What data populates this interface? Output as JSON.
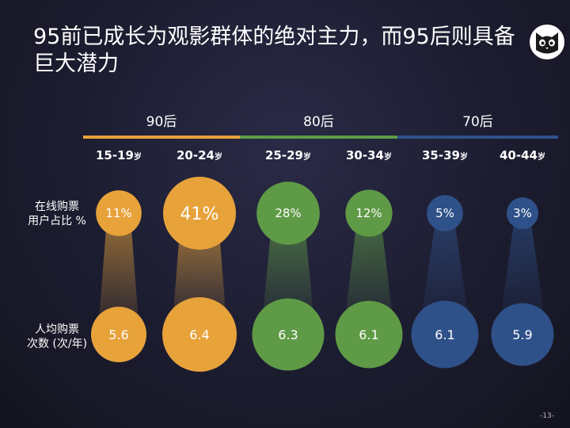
{
  "title": "95前已成长为观影群体的绝对主力，而95后则具备巨大潜力",
  "page_number": "-13-",
  "logo_icon": "cat-icon",
  "colors": {
    "90后": "#e7a23a",
    "80后": "#5f9a46",
    "70后": "#2f5189"
  },
  "row_labels": {
    "share": [
      "在线购票",
      "用户占比 %"
    ],
    "tickets": [
      "人均购票",
      "次数 (次/年)"
    ]
  },
  "chart_data": {
    "type": "bubble",
    "groups": [
      {
        "name": "90后",
        "color": "#e7a23a",
        "categories": [
          0,
          1
        ]
      },
      {
        "name": "80后",
        "color": "#5f9a46",
        "categories": [
          2,
          3
        ]
      },
      {
        "name": "70后",
        "color": "#2f5189",
        "categories": [
          4,
          5
        ]
      }
    ],
    "categories": [
      {
        "label": "15-19",
        "unit": "岁"
      },
      {
        "label": "20-24",
        "unit": "岁"
      },
      {
        "label": "25-29",
        "unit": "岁"
      },
      {
        "label": "30-34",
        "unit": "岁"
      },
      {
        "label": "35-39",
        "unit": "岁"
      },
      {
        "label": "40-44",
        "unit": "岁"
      }
    ],
    "series": [
      {
        "name": "在线购票用户占比 %",
        "values": [
          11,
          41,
          28,
          12,
          5,
          3
        ],
        "labels": [
          "11%",
          "41%",
          "28%",
          "12%",
          "5%",
          "3%"
        ]
      },
      {
        "name": "人均购票次数 (次/年)",
        "values": [
          5.6,
          6.4,
          6.3,
          6.1,
          6.1,
          5.9
        ],
        "labels": [
          "5.6",
          "6.4",
          "6.3",
          "6.1",
          "6.1",
          "5.9"
        ]
      }
    ]
  }
}
